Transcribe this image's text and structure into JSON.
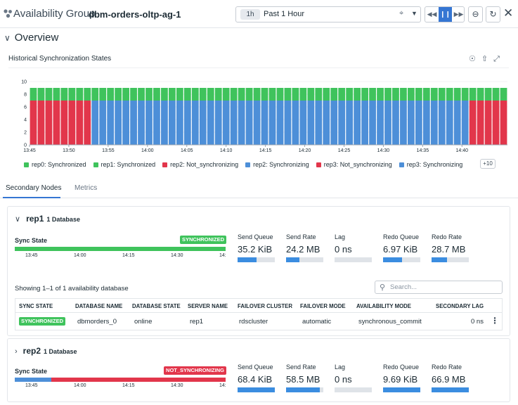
{
  "header": {
    "entity_type": "Availability Group",
    "entity_name": "dbm-orders-oltp-ag-1",
    "time_pill": "1h",
    "time_label": "Past 1 Hour"
  },
  "overview": {
    "title": "Overview",
    "chart_title": "Historical Synchronization States",
    "legend_more": "+10"
  },
  "colors": {
    "synchronized": "#3fc35c",
    "not_synchronizing": "#e2364b",
    "synchronizing": "#4d8fd8",
    "accent": "#3576d3"
  },
  "chart_data": {
    "type": "bar",
    "stacked": true,
    "title": "Historical Synchronization States",
    "ylim": [
      0,
      10
    ],
    "yticks": [
      0,
      2,
      4,
      6,
      8,
      10
    ],
    "xticks": [
      "13:45",
      "13:50",
      "13:55",
      "14:00",
      "14:05",
      "14:10",
      "14:15",
      "14:20",
      "14:25",
      "14:30",
      "14:35",
      "14:40"
    ],
    "bar_count": 62,
    "series": [
      {
        "name": "rep0: Synchronized",
        "color": "#3fc35c"
      },
      {
        "name": "rep1: Synchronized",
        "color": "#3fc35c"
      },
      {
        "name": "rep2: Not_synchronizing",
        "color": "#e2364b"
      },
      {
        "name": "rep2: Synchronizing",
        "color": "#4d8fd8"
      },
      {
        "name": "rep3: Not_synchronizing",
        "color": "#e2364b"
      },
      {
        "name": "rep3: Synchronizing",
        "color": "#4d8fd8"
      }
    ],
    "segments_by_period": [
      {
        "from_bar": 0,
        "to_bar": 7,
        "synchronized": 2,
        "not_synchronizing": 7,
        "synchronizing": 0
      },
      {
        "from_bar": 8,
        "to_bar": 56,
        "synchronized": 2,
        "not_synchronizing": 0,
        "synchronizing": 7
      },
      {
        "from_bar": 57,
        "to_bar": 61,
        "synchronized": 2,
        "not_synchronizing": 7,
        "synchronizing": 0
      }
    ]
  },
  "tabs": [
    {
      "label": "Secondary Nodes"
    },
    {
      "label": "Metrics"
    }
  ],
  "metric_labels": [
    "Send Queue",
    "Send Rate",
    "Lag",
    "Redo Queue",
    "Redo Rate"
  ],
  "sync_ticks": [
    "13:45",
    "14:00",
    "14:15",
    "14:30",
    "14:"
  ],
  "nodes": [
    {
      "name": "rep1",
      "db_count": "1 Database",
      "sync_label": "Sync State",
      "status": "SYNCHRONIZED",
      "status_color": "#3fc35c",
      "metrics": [
        {
          "value": "35.2 KiB",
          "fill": 0.5
        },
        {
          "value": "24.2 MB",
          "fill": 0.35
        },
        {
          "value": "0 ns",
          "fill": 0.0
        },
        {
          "value": "6.97 KiB",
          "fill": 0.5
        },
        {
          "value": "28.7 MB",
          "fill": 0.42
        }
      ],
      "table": {
        "showing": "Showing 1–1 of 1 availability database",
        "search_placeholder": "Search...",
        "columns": [
          "SYNC STATE",
          "DATABASE NAME",
          "DATABASE STATE",
          "SERVER NAME",
          "FAILOVER CLUSTER",
          "FAILOVER MODE",
          "AVAILABILITY MODE",
          "SECONDARY LAG"
        ],
        "row": {
          "sync_state": "SYNCHRONIZED",
          "database_name": "dbmorders_0",
          "database_state": "online",
          "server_name": "rep1",
          "failover_cluster": "rdscluster",
          "failover_mode": "automatic",
          "availability_mode": "synchronous_commit",
          "secondary_lag": "0 ns"
        }
      }
    },
    {
      "name": "rep2",
      "db_count": "1 Database",
      "sync_label": "Sync State",
      "status": "NOT_SYNCHRONIZING",
      "status_color": "#e2364b",
      "metrics": [
        {
          "value": "68.4 KiB",
          "fill": 1.0
        },
        {
          "value": "58.5 MB",
          "fill": 0.9
        },
        {
          "value": "0 ns",
          "fill": 0.0
        },
        {
          "value": "9.69 KiB",
          "fill": 1.0
        },
        {
          "value": "66.9 MB",
          "fill": 1.0
        }
      ]
    }
  ]
}
